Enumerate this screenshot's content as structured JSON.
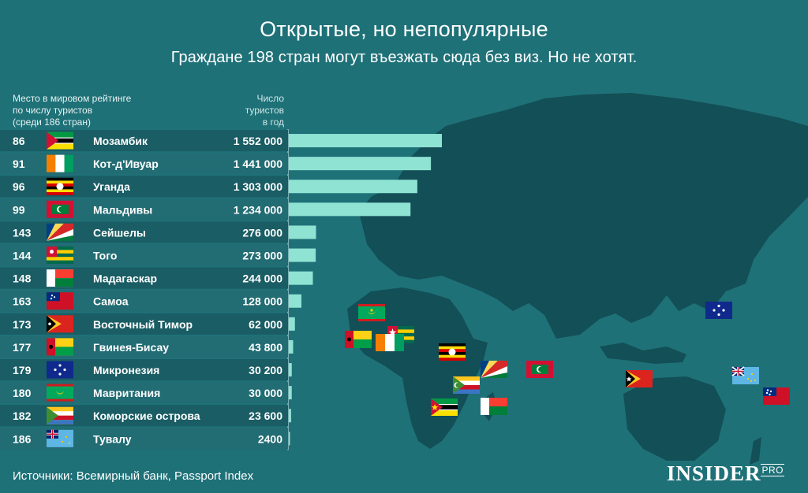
{
  "header": {
    "title": "Открытые, но непопулярные",
    "subtitle": "Граждане 198 стран могут въезжать сюда без виз. Но не хотят."
  },
  "columns": {
    "rank_lines": [
      "Место в мировом рейтинге",
      "по числу туристов",
      "(среди 186 стран)"
    ],
    "tourists_lines": [
      "Число",
      "туристов",
      "в год"
    ]
  },
  "chart_data": {
    "type": "bar",
    "orientation": "horizontal",
    "categories": [
      "Мозамбик",
      "Кот-д'Ивуар",
      "Уганда",
      "Мальдивы",
      "Сейшелы",
      "Того",
      "Мадагаскар",
      "Самоа",
      "Восточный Тимор",
      "Гвинея-Бисау",
      "Микронезия",
      "Мавритания",
      "Коморские острова",
      "Тувалу"
    ],
    "ranks": [
      "86",
      "91",
      "96",
      "99",
      "143",
      "144",
      "148",
      "163",
      "173",
      "177",
      "179",
      "180",
      "182",
      "186"
    ],
    "values": [
      1552000,
      1441000,
      1303000,
      1234000,
      276000,
      273000,
      244000,
      128000,
      62000,
      43800,
      30200,
      30000,
      23600,
      2400
    ],
    "value_labels": [
      "1 552 000",
      "1 441 000",
      "1 303 000",
      "1 234 000",
      "276 000",
      "273 000",
      "244 000",
      "128 000",
      "62 000",
      "43 800",
      "30 200",
      "30 000",
      "23 600",
      "2400"
    ],
    "flags": [
      "mozambique-flag",
      "cote-divoire-flag",
      "uganda-flag",
      "maldives-flag",
      "seychelles-flag",
      "togo-flag",
      "madagascar-flag",
      "samoa-flag",
      "east-timor-flag",
      "guinea-bissau-flag",
      "micronesia-flag",
      "mauritania-flag",
      "comoros-flag",
      "tuvalu-flag"
    ],
    "xlim": [
      0,
      1552000
    ],
    "bar_color": "#8fe3d3"
  },
  "footer": {
    "source": "Источники: Всемирный банк, Passport Index",
    "logo": "INSIDER",
    "logo_suffix": "PRO"
  },
  "colors": {
    "background": "#1f7178",
    "land": "#134f56",
    "row_dark": "#1a5d64",
    "row_light": "#226c73",
    "bar": "#8fe3d3"
  }
}
